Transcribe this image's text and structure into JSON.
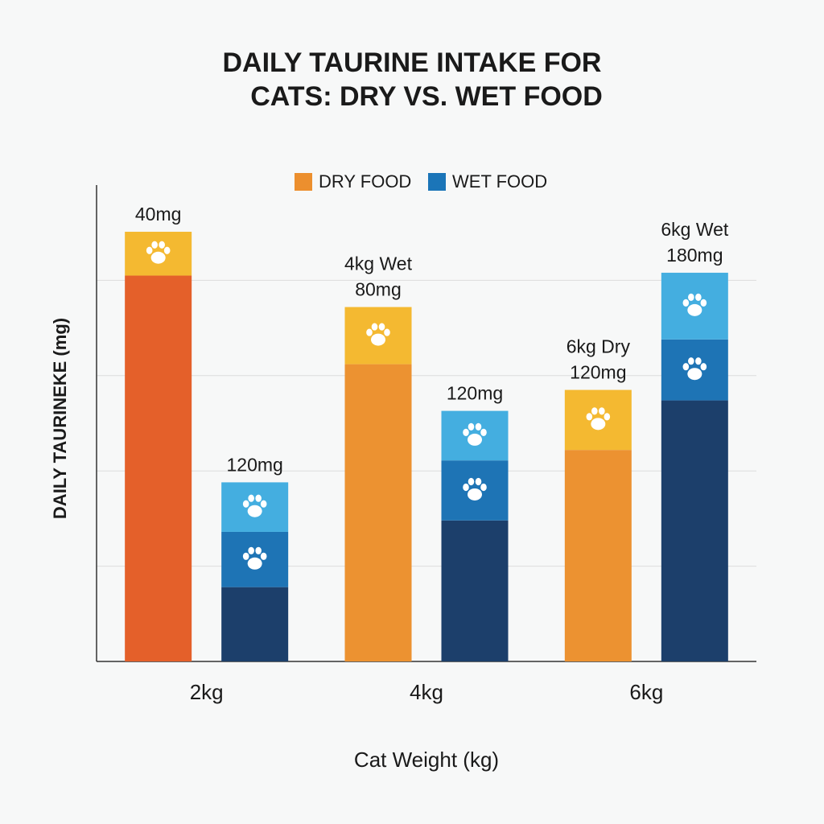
{
  "chart_data": {
    "type": "stacked_bar",
    "title": [
      "DAILY TAURINE INTAKE FOR",
      "CATS: DRY VS. WET FOOD"
    ],
    "x_label": "Cat Weight (kg)",
    "y_label": "DAILY TAURINEKE (mg)",
    "categories": [
      "2kg",
      "4kg",
      "6kg"
    ],
    "ylim": [
      0,
      5
    ],
    "yticks": [
      1,
      2,
      3,
      4
    ],
    "grid": true,
    "series": [
      {
        "name": "DRY FOOD",
        "color": "#ec8f2e",
        "values": [
          [
            4.05,
            0.46
          ],
          [
            3.12,
            0.6
          ],
          [
            2.22,
            0.63
          ]
        ],
        "segment_colors": [
          [
            "#e4602a",
            "#f4b931"
          ],
          [
            "#ec9231",
            "#f4b931"
          ],
          [
            "#ec9231",
            "#f4b931"
          ]
        ],
        "labels": [
          [
            "40mg"
          ],
          [
            "4kg Wet",
            "80mg"
          ],
          [
            "6kg Dry",
            "120mg"
          ]
        ]
      },
      {
        "name": "WET FOOD",
        "color": "#1b75b8",
        "values": [
          [
            0.78,
            0.58,
            0.52
          ],
          [
            1.48,
            0.63,
            0.52
          ],
          [
            2.74,
            0.64,
            0.7
          ]
        ],
        "segment_colors": [
          [
            "#1c3f6b",
            "#1e74b5",
            "#44aee0"
          ],
          [
            "#1c3f6b",
            "#1e74b5",
            "#44aee0"
          ],
          [
            "#1c3f6b",
            "#1e74b5",
            "#44aee0"
          ]
        ],
        "labels": [
          [
            "120mg"
          ],
          [
            "120mg"
          ],
          [
            "6kg Wet",
            "180mg"
          ]
        ]
      }
    ]
  }
}
